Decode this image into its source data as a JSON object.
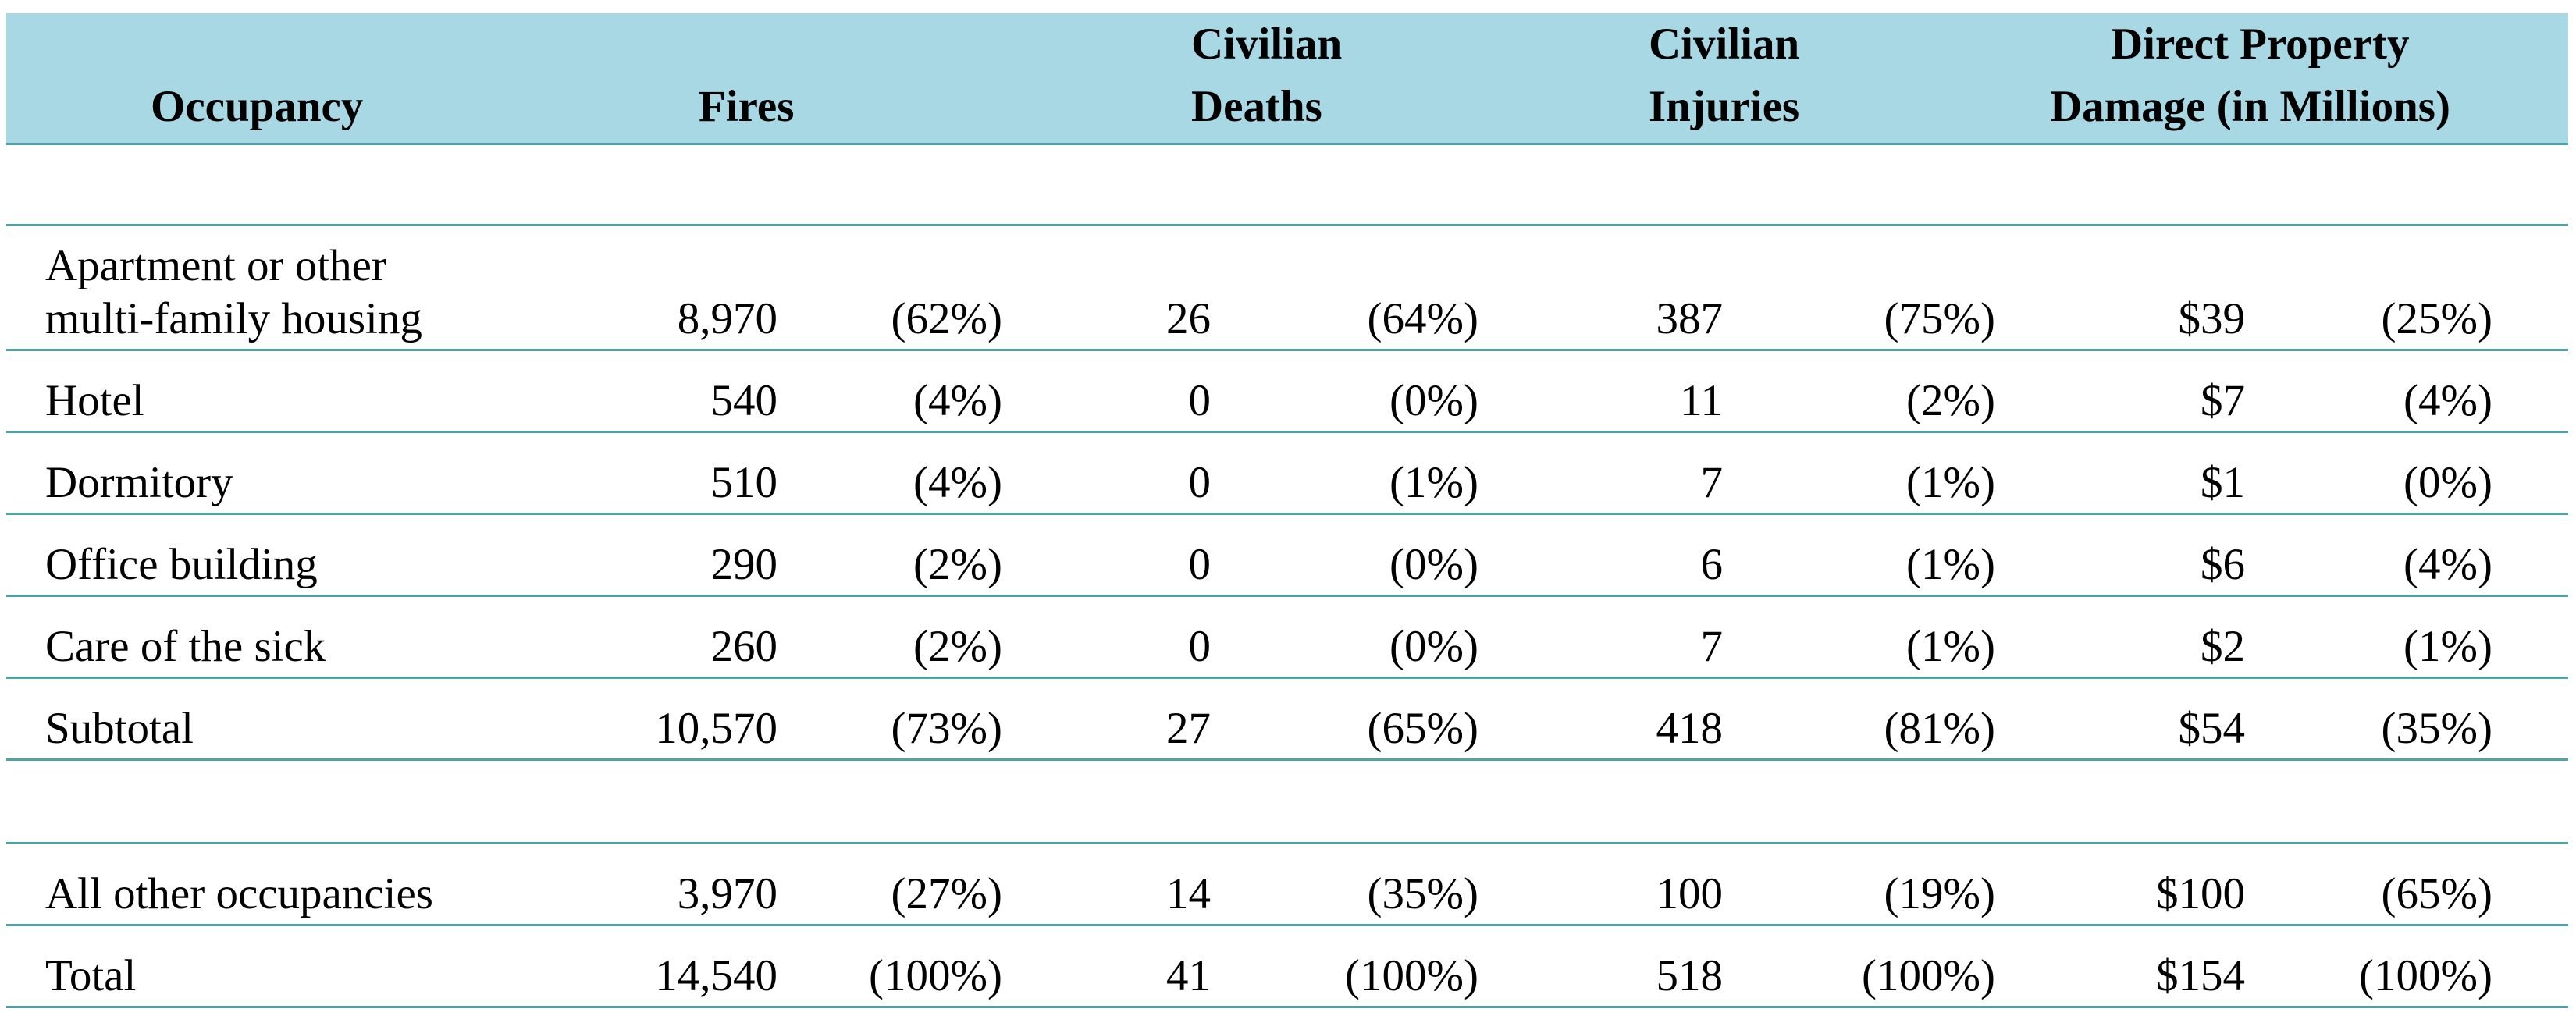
{
  "table": {
    "headers": {
      "occupancy": "Occupancy",
      "fires": "Fires",
      "deaths_line1": "Civilian",
      "deaths_line2": "Deaths",
      "injuries_line1": "Civilian",
      "injuries_line2": "Injuries",
      "damage_line1": "Direct Property",
      "damage_line2": "Damage (in Millions)"
    },
    "rows": [
      {
        "label_line1": "Apartment or other",
        "label_line2": "multi-family housing",
        "fires": "8,970",
        "fires_pct": "(62%)",
        "deaths": "26",
        "deaths_pct": "(64%)",
        "injuries": "387",
        "injuries_pct": "(75%)",
        "damage": "$39",
        "damage_pct": "(25%)"
      },
      {
        "label": "Hotel",
        "fires": "540",
        "fires_pct": "(4%)",
        "deaths": "0",
        "deaths_pct": "(0%)",
        "injuries": "11",
        "injuries_pct": "(2%)",
        "damage": "$7",
        "damage_pct": "(4%)"
      },
      {
        "label": "Dormitory",
        "fires": "510",
        "fires_pct": "(4%)",
        "deaths": "0",
        "deaths_pct": "(1%)",
        "injuries": "7",
        "injuries_pct": "(1%)",
        "damage": "$1",
        "damage_pct": "(0%)"
      },
      {
        "label": "Office building",
        "fires": "290",
        "fires_pct": "(2%)",
        "deaths": "0",
        "deaths_pct": "(0%)",
        "injuries": "6",
        "injuries_pct": "(1%)",
        "damage": "$6",
        "damage_pct": "(4%)"
      },
      {
        "label": "Care of the sick",
        "fires": "260",
        "fires_pct": "(2%)",
        "deaths": "0",
        "deaths_pct": "(0%)",
        "injuries": "7",
        "injuries_pct": "(1%)",
        "damage": "$2",
        "damage_pct": "(1%)"
      },
      {
        "label": "Subtotal",
        "fires": "10,570",
        "fires_pct": "(73%)",
        "deaths": "27",
        "deaths_pct": "(65%)",
        "injuries": "418",
        "injuries_pct": "(81%)",
        "damage": "$54",
        "damage_pct": "(35%)"
      },
      {
        "label": "All other occupancies",
        "fires": "3,970",
        "fires_pct": "(27%)",
        "deaths": "14",
        "deaths_pct": "(35%)",
        "injuries": "100",
        "injuries_pct": "(19%)",
        "damage": "$100",
        "damage_pct": "(65%)"
      },
      {
        "label": "Total",
        "fires": "14,540",
        "fires_pct": "(100%)",
        "deaths": "41",
        "deaths_pct": "(100%)",
        "injuries": "518",
        "injuries_pct": "(100%)",
        "damage": "$154",
        "damage_pct": "(100%)"
      }
    ]
  },
  "colors": {
    "header_bg": "#a8d8e4",
    "rule": "#4fa3a8",
    "text": "#000000"
  }
}
